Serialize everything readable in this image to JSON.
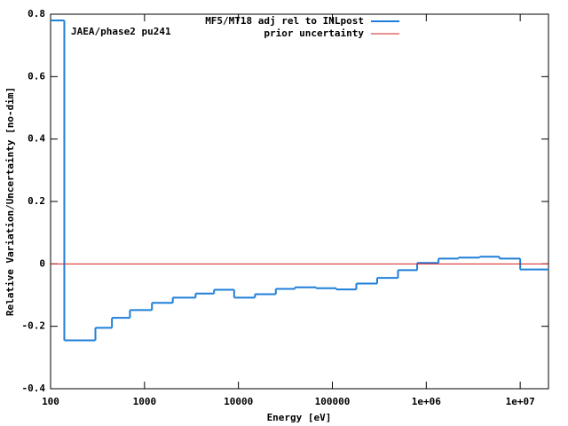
{
  "chart_data": {
    "type": "step",
    "xlabel": "Energy [eV]",
    "ylabel": "Relative Variation/Uncertainty [no-dim]",
    "annotation": "JAEA/phase2 pu241",
    "xscale": "log",
    "xlim": [
      100,
      20000000
    ],
    "ylim": [
      -0.4,
      0.8
    ],
    "xticks": [
      100,
      1000,
      10000,
      100000,
      {
        "value": 1000000,
        "label": "1e+06"
      },
      {
        "value": 10000000,
        "label": "1e+07"
      }
    ],
    "yticks": [
      -0.4,
      -0.2,
      0,
      0.2,
      0.4,
      0.6,
      0.8
    ],
    "legend": "top-right",
    "series": [
      {
        "name": "MF5/MT18 adj rel to INLpost",
        "color": "#1f7fd8",
        "bins": [
          100,
          140,
          300,
          450,
          700,
          1200,
          2000,
          3500,
          5500,
          9000,
          15000,
          25000,
          40000,
          67000,
          110000,
          180000,
          300000,
          500000,
          800000,
          1350000,
          2200000,
          3700000,
          6000000,
          10000000,
          20000000
        ],
        "values": [
          0.78,
          -0.245,
          -0.205,
          -0.173,
          -0.148,
          -0.125,
          -0.108,
          -0.095,
          -0.083,
          -0.108,
          -0.097,
          -0.08,
          -0.075,
          -0.078,
          -0.082,
          -0.063,
          -0.045,
          -0.02,
          0.003,
          0.017,
          0.02,
          0.023,
          0.017,
          -0.018
        ]
      },
      {
        "name": "prior uncertainty",
        "color": "#d22020",
        "x": [
          100,
          20000000
        ],
        "values": [
          0,
          0
        ]
      }
    ]
  }
}
